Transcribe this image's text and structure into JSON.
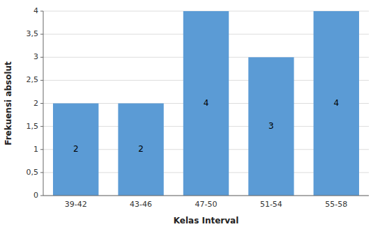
{
  "chart_data": {
    "type": "bar",
    "categories": [
      "39-42",
      "43-46",
      "47-50",
      "51-54",
      "55-58"
    ],
    "values": [
      2,
      2,
      4,
      3,
      4
    ],
    "color": "#5b9bd5",
    "xlabel": "Kelas Interval",
    "ylabel": "Frekuensi absolut",
    "ylim": [
      0,
      4
    ],
    "yticks": [
      0,
      {
        "value": 0.5,
        "label": "0,5"
      },
      1,
      {
        "value": 1.5,
        "label": "1,5"
      },
      2,
      {
        "value": 2.5,
        "label": "2,5"
      },
      3,
      {
        "value": 3.5,
        "label": "3,5"
      },
      4
    ],
    "grid": true,
    "data_labels": true
  }
}
